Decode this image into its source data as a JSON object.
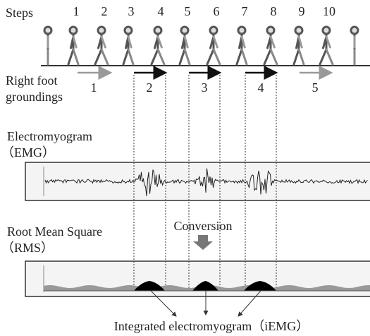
{
  "steps": {
    "label": "Steps",
    "numbers": [
      "1",
      "2",
      "3",
      "4",
      "5",
      "6",
      "7",
      "8",
      "9",
      "10"
    ]
  },
  "groundings": {
    "label_line1": "Right foot",
    "label_line2": "groundings",
    "numbers": [
      "1",
      "2",
      "3",
      "4",
      "5"
    ]
  },
  "emg": {
    "label": "Electromyogram",
    "abbr": "（EMG）"
  },
  "rms": {
    "label": "Root Mean Square",
    "abbr": "（RMS）"
  },
  "conversion": "Conversion",
  "iemg_label": "Integrated electromyogram（iEMG）"
}
